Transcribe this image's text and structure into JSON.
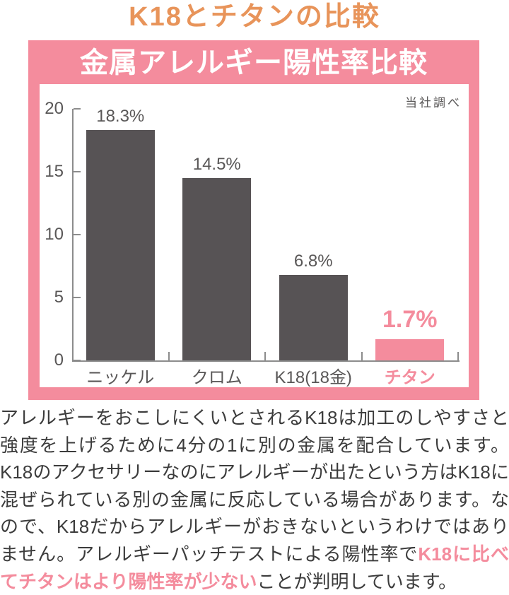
{
  "page": {
    "title": "K18とチタンの比較"
  },
  "banner": {
    "title": "金属アレルギー陽性率比較"
  },
  "chart_data": {
    "type": "bar",
    "title": "金属アレルギー陽性率比較",
    "source_note": "当社調べ",
    "categories": [
      "ニッケル",
      "クロム",
      "K18(18金)",
      "チタン"
    ],
    "values": [
      18.3,
      14.5,
      6.8,
      1.7
    ],
    "value_labels": [
      "18.3%",
      "14.5%",
      "6.8%",
      "1.7%"
    ],
    "highlight_index": 3,
    "ylim": [
      0,
      20
    ],
    "yticks": [
      0,
      5,
      10,
      15,
      20
    ],
    "xlabel": "",
    "ylabel": "",
    "grid": false,
    "legend": false,
    "bar_color": "#575355",
    "highlight_color": "#F48C9D"
  },
  "body": {
    "text_before": "アレルギーをおこしにくいとされるK18は加工のしやすさと強度を上げるために4分の1に別の金属を配合しています。K18のアクセサリーなのにアレルギーが出たという方はK18に混ぜられている別の金属に反応している場合があります。なので、K18だからアレルギーがおきないというわけではありません。アレルギーパッチテストによる陽性率で",
    "text_highlight": "K18に比べてチタンはより陽性率が少ない",
    "text_after": "ことが判明しています。"
  },
  "colors": {
    "accent_pink": "#F48C9D",
    "accent_orange": "#E8945A",
    "bar_gray": "#575355",
    "text_dark": "#3C3C3C",
    "text_gray": "#595757",
    "axis_gray": "#8C8C8C"
  }
}
